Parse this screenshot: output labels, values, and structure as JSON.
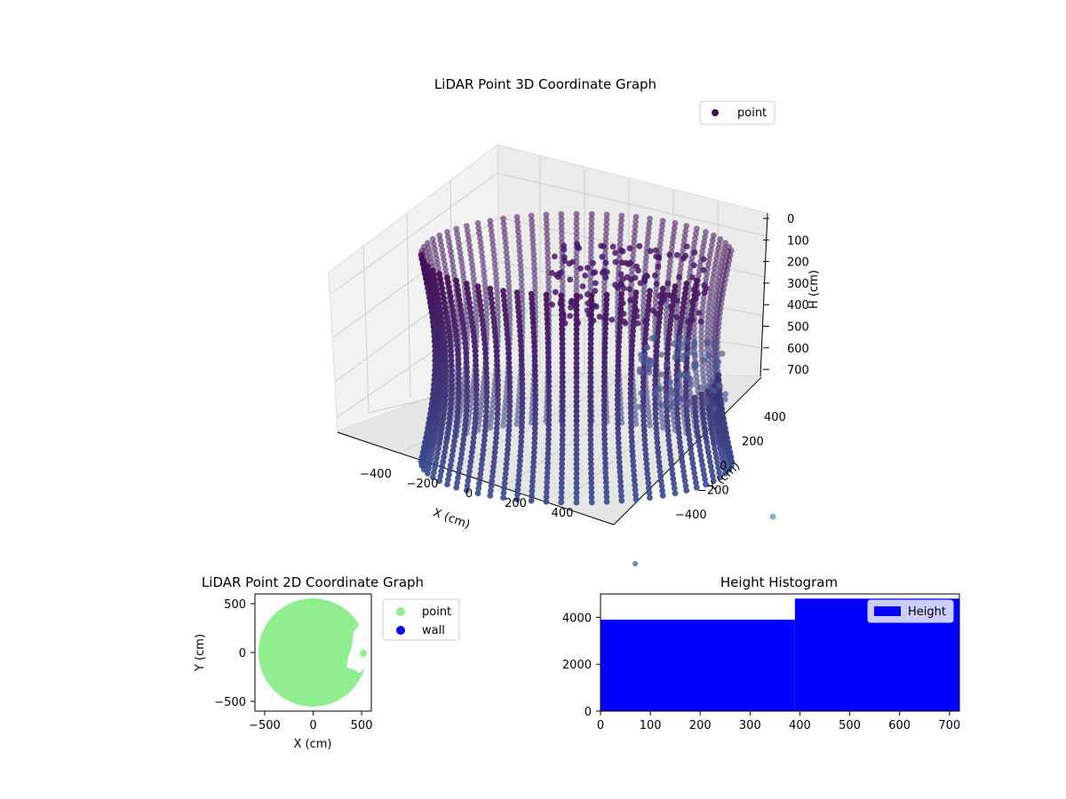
{
  "chart_data": [
    {
      "type": "scatter",
      "projection": "3d",
      "title": "LiDAR Point 3D Coordinate Graph",
      "xlabel": "X (cm)",
      "ylabel": "Y (cm)",
      "zlabel": "H (cm)",
      "xlim": [
        -550,
        550
      ],
      "ylim": [
        -550,
        550
      ],
      "zlim": [
        0,
        720
      ],
      "z_axis_inverted": true,
      "xticks": [
        "−400",
        "−200",
        "0",
        "200",
        "400"
      ],
      "yticks": [
        "−400",
        "−200",
        "0",
        "200",
        "400"
      ],
      "zticks": [
        "0",
        "100",
        "200",
        "300",
        "400",
        "500",
        "600",
        "700"
      ],
      "legend": {
        "placement": "top-right",
        "entries": [
          "point"
        ]
      },
      "grid": true,
      "colormap": "viridis",
      "series": [
        {
          "name": "point",
          "shape": "cylindrical wall scan",
          "radius_cm": 500,
          "height_range_cm": [
            0,
            700
          ],
          "opening_near_angle_deg": [
            -20,
            35
          ],
          "marker_color": "#440d55"
        }
      ]
    },
    {
      "type": "scatter",
      "title": "LiDAR Point 2D Coordinate Graph",
      "xlabel": "X (cm)",
      "ylabel": "Y (cm)",
      "xlim": [
        -600,
        600
      ],
      "ylim": [
        -600,
        600
      ],
      "xticks": [
        "−500",
        "0",
        "500"
      ],
      "yticks": [
        "−500",
        "0",
        "500"
      ],
      "legend": {
        "placement": "outside-right",
        "entries": [
          "point",
          "wall"
        ]
      },
      "series": [
        {
          "name": "point",
          "color": "#90ee90",
          "shape": "filled disk",
          "center": [
            0,
            0
          ],
          "radius": 550
        },
        {
          "name": "wall",
          "color": "#0000ff"
        }
      ]
    },
    {
      "type": "bar",
      "title": "Height Histogram",
      "xlabel": "",
      "ylabel": "",
      "xlim": [
        0,
        720
      ],
      "ylim": [
        0,
        5000
      ],
      "xticks": [
        "0",
        "100",
        "200",
        "300",
        "400",
        "500",
        "600",
        "700"
      ],
      "yticks": [
        "0",
        "2000",
        "4000"
      ],
      "legend": {
        "placement": "top-right",
        "entries": [
          "Height"
        ]
      },
      "series": [
        {
          "name": "Height",
          "color": "#0000ff",
          "bins": [
            {
              "x0": 0,
              "x1": 390,
              "count": 3900
            },
            {
              "x0": 390,
              "x1": 720,
              "count": 4800
            }
          ]
        }
      ]
    }
  ]
}
